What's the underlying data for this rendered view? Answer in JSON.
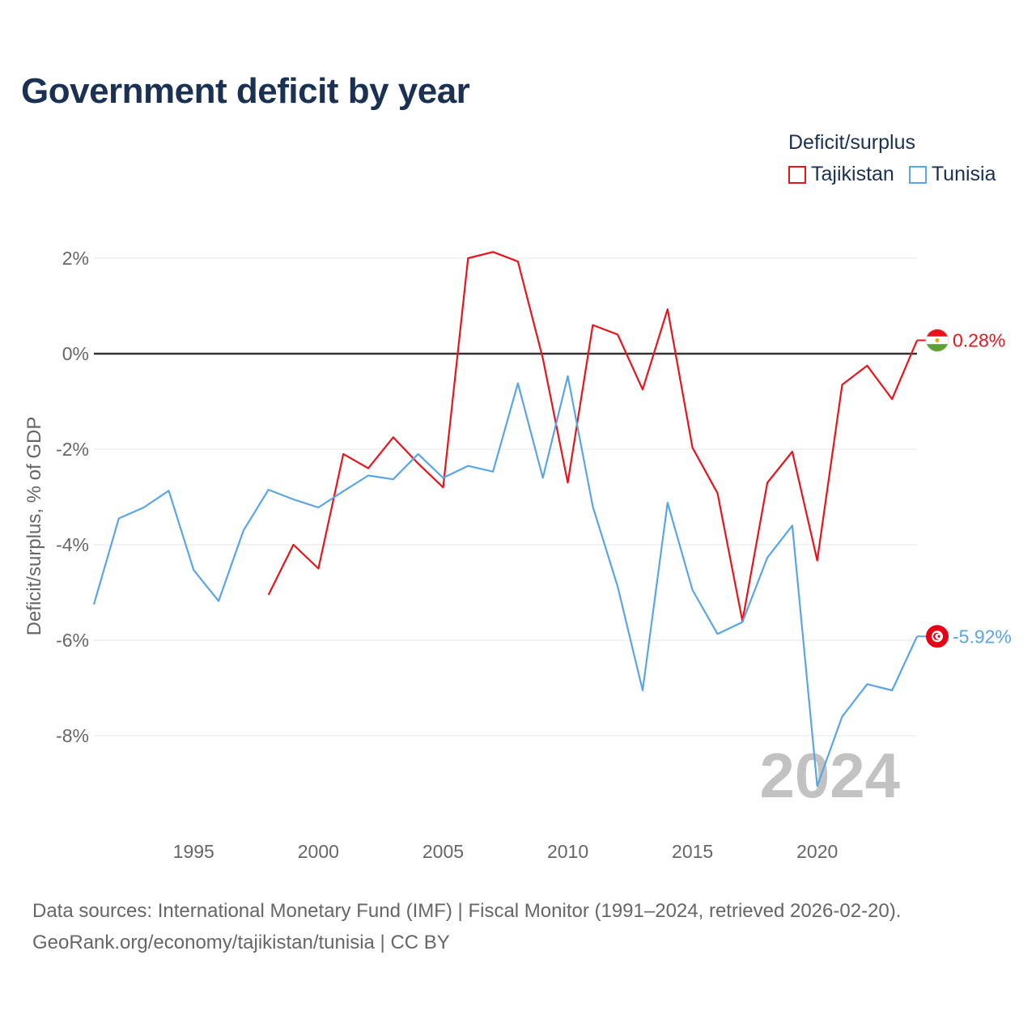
{
  "title": "Government deficit by year",
  "legend": {
    "title": "Deficit/surplus",
    "items": [
      {
        "label": "Tajikistan",
        "color": "#e8141b"
      },
      {
        "label": "Tunisia",
        "color": "#5aa5e6"
      }
    ]
  },
  "watermark_year": "2024",
  "footer": {
    "line1": "Data sources: International Monetary Fund (IMF) | Fiscal Monitor (1991–2024, retrieved 2026-02-20).",
    "line2": "GeoRank.org/economy/tajikistan/tunisia | CC BY"
  },
  "chart_data": {
    "type": "line",
    "ylabel": "Deficit/surplus, % of GDP",
    "xlabel": "",
    "xlim": [
      1991,
      2024
    ],
    "ylim": [
      -9.5,
      2.5
    ],
    "x_ticks": [
      1995,
      2000,
      2005,
      2010,
      2015,
      2020
    ],
    "y_ticks": [
      {
        "value": 2,
        "label": "2%"
      },
      {
        "value": 0,
        "label": "0%"
      },
      {
        "value": -2,
        "label": "-2%"
      },
      {
        "value": -4,
        "label": "-4%"
      },
      {
        "value": -6,
        "label": "-6%"
      },
      {
        "value": -8,
        "label": "-8%"
      }
    ],
    "series": [
      {
        "name": "Tajikistan",
        "color": "#e8141b",
        "end_label": "0.28%",
        "x": [
          1998,
          1999,
          2000,
          2001,
          2002,
          2003,
          2004,
          2005,
          2006,
          2007,
          2008,
          2009,
          2010,
          2011,
          2012,
          2013,
          2014,
          2015,
          2016,
          2017,
          2018,
          2019,
          2020,
          2021,
          2022,
          2023,
          2024
        ],
        "values": [
          -5.05,
          -4.0,
          -4.5,
          -2.1,
          -2.4,
          -1.75,
          -2.3,
          -2.8,
          2.0,
          2.13,
          1.93,
          -0.1,
          -2.7,
          0.6,
          0.4,
          -0.75,
          0.93,
          -1.97,
          -2.92,
          -5.6,
          -2.7,
          -2.05,
          -4.33,
          -0.65,
          -0.25,
          -0.95,
          0.28
        ]
      },
      {
        "name": "Tunisia",
        "color": "#5aa5e6",
        "end_label": "-5.92%",
        "x": [
          1991,
          1992,
          1993,
          1994,
          1995,
          1996,
          1997,
          1998,
          1999,
          2000,
          2001,
          2002,
          2003,
          2004,
          2005,
          2006,
          2007,
          2008,
          2009,
          2010,
          2011,
          2012,
          2013,
          2014,
          2015,
          2016,
          2017,
          2018,
          2019,
          2020,
          2021,
          2022,
          2023,
          2024
        ],
        "values": [
          -5.25,
          -3.45,
          -3.22,
          -2.87,
          -4.53,
          -5.18,
          -3.7,
          -2.85,
          -3.05,
          -3.22,
          -2.88,
          -2.55,
          -2.63,
          -2.1,
          -2.6,
          -2.35,
          -2.47,
          -0.62,
          -2.6,
          -0.47,
          -3.2,
          -4.88,
          -7.05,
          -3.12,
          -4.95,
          -5.87,
          -5.62,
          -4.27,
          -3.6,
          -9.05,
          -7.6,
          -6.92,
          -7.05,
          -5.92
        ]
      }
    ]
  }
}
